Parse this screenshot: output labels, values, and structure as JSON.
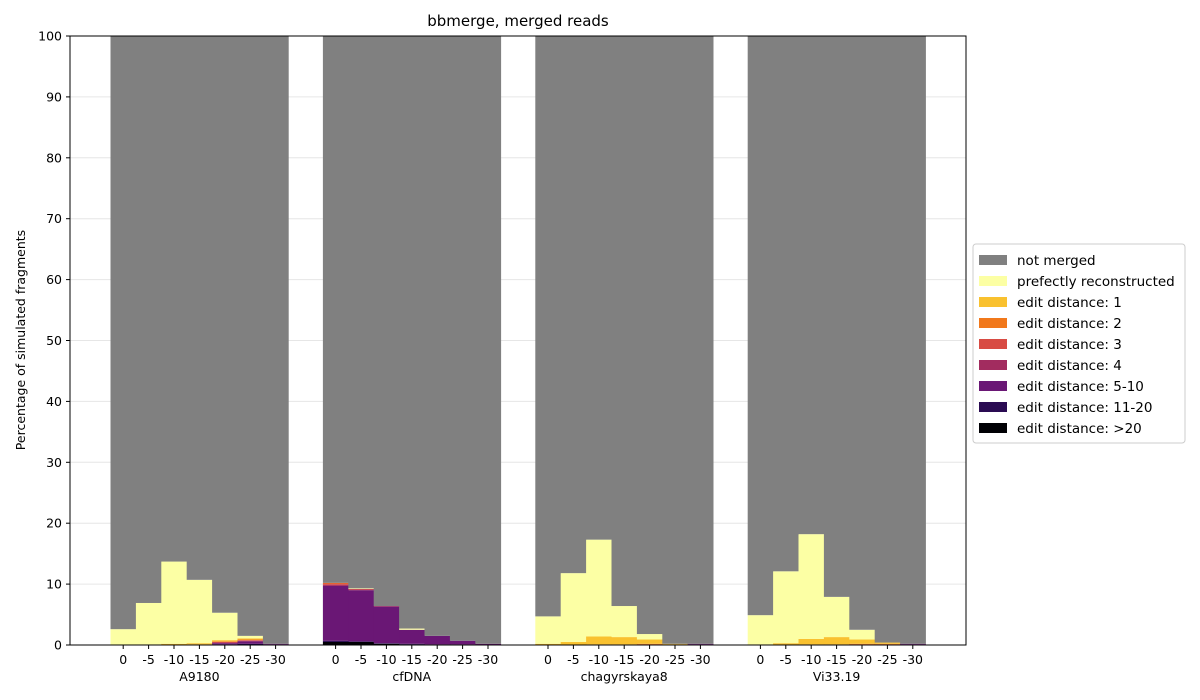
{
  "chart_data": {
    "type": "bar",
    "stacked": true,
    "title": "bbmerge, merged reads",
    "ylabel": "Percentage of simulated fragments",
    "xlabel": "",
    "ylim": [
      0,
      100
    ],
    "yticks": [
      0,
      10,
      20,
      30,
      40,
      50,
      60,
      70,
      80,
      90,
      100
    ],
    "grid": "horizontal",
    "legend_position": "right",
    "offsets": [
      "0",
      "-5",
      "-10",
      "-15",
      "-20",
      "-25",
      "-30"
    ],
    "groups": [
      {
        "name": "A9180",
        "layers": {
          "edit distance: >20": [
            0,
            0,
            0,
            0,
            0,
            0,
            0
          ],
          "edit distance: 11-20": [
            0,
            0,
            0,
            0,
            0.1,
            0.2,
            0.1
          ],
          "edit distance: 5-10": [
            0,
            0,
            0,
            0,
            0.2,
            0.4,
            0.1
          ],
          "edit distance: 4": [
            0,
            0,
            0,
            0,
            0.1,
            0.1,
            0
          ],
          "edit distance: 3": [
            0,
            0,
            0,
            0,
            0.1,
            0.1,
            0
          ],
          "edit distance: 2": [
            0,
            0,
            0,
            0.1,
            0.1,
            0.1,
            0
          ],
          "edit distance: 1": [
            0,
            0.1,
            0.2,
            0.2,
            0.2,
            0.2,
            0
          ],
          "prefectly reconstructed": [
            2.6,
            6.8,
            13.5,
            10.4,
            4.5,
            0.4,
            0
          ],
          "not merged": [
            97.4,
            93.1,
            86.3,
            89.3,
            94.7,
            98.5,
            99.8
          ]
        }
      },
      {
        "name": "cfDNA",
        "layers": {
          "edit distance: >20": [
            0.5,
            0.5,
            0.2,
            0.1,
            0,
            0,
            0
          ],
          "edit distance: 11-20": [
            0.2,
            0.1,
            0.1,
            0.1,
            0.1,
            0.1,
            0
          ],
          "edit distance: 5-10": [
            9.0,
            8.4,
            6.0,
            2.3,
            1.4,
            0.6,
            0.2
          ],
          "edit distance: 4": [
            0.2,
            0.1,
            0.1,
            0,
            0,
            0,
            0
          ],
          "edit distance: 3": [
            0.2,
            0.1,
            0,
            0,
            0,
            0,
            0
          ],
          "edit distance: 2": [
            0.1,
            0,
            0,
            0,
            0,
            0,
            0
          ],
          "edit distance: 1": [
            0,
            0,
            0,
            0,
            0,
            0,
            0
          ],
          "prefectly reconstructed": [
            0,
            0.1,
            0,
            0.2,
            0,
            0,
            0
          ],
          "not merged": [
            89.8,
            90.7,
            93.6,
            97.3,
            98.5,
            99.3,
            99.8
          ]
        }
      },
      {
        "name": "chagyrskaya8",
        "layers": {
          "edit distance: >20": [
            0,
            0,
            0,
            0,
            0,
            0,
            0
          ],
          "edit distance: 11-20": [
            0,
            0,
            0,
            0,
            0,
            0,
            0.1
          ],
          "edit distance: 5-10": [
            0,
            0,
            0,
            0,
            0,
            0.1,
            0.1
          ],
          "edit distance: 4": [
            0,
            0,
            0,
            0,
            0,
            0,
            0
          ],
          "edit distance: 3": [
            0,
            0,
            0,
            0,
            0.1,
            0,
            0
          ],
          "edit distance: 2": [
            0,
            0,
            0.1,
            0.1,
            0.1,
            0,
            0
          ],
          "edit distance: 1": [
            0.2,
            0.5,
            1.3,
            1.2,
            0.7,
            0.1,
            0
          ],
          "prefectly reconstructed": [
            4.5,
            11.3,
            15.9,
            5.1,
            0.9,
            0,
            0
          ],
          "not merged": [
            95.3,
            88.2,
            82.7,
            93.6,
            98.2,
            99.8,
            99.8
          ]
        }
      },
      {
        "name": "Vi33.19",
        "layers": {
          "edit distance: >20": [
            0,
            0,
            0,
            0,
            0,
            0,
            0
          ],
          "edit distance: 11-20": [
            0,
            0,
            0,
            0,
            0,
            0,
            0.1
          ],
          "edit distance: 5-10": [
            0,
            0,
            0,
            0,
            0,
            0.1,
            0.1
          ],
          "edit distance: 4": [
            0,
            0,
            0,
            0,
            0,
            0,
            0
          ],
          "edit distance: 3": [
            0,
            0,
            0,
            0,
            0.1,
            0,
            0
          ],
          "edit distance: 2": [
            0,
            0,
            0.1,
            0.1,
            0.1,
            0.1,
            0
          ],
          "edit distance: 1": [
            0.1,
            0.3,
            0.9,
            1.2,
            0.7,
            0.2,
            0
          ],
          "prefectly reconstructed": [
            4.8,
            11.8,
            17.2,
            6.6,
            1.6,
            0,
            0
          ],
          "not merged": [
            95.1,
            87.9,
            81.8,
            92.1,
            97.5,
            99.6,
            99.8
          ]
        }
      }
    ],
    "series": [
      {
        "name": "not merged",
        "color": "#808080"
      },
      {
        "name": "prefectly reconstructed",
        "color": "#fcffa4"
      },
      {
        "name": "edit distance: 1",
        "color": "#f9c12f"
      },
      {
        "name": "edit distance: 2",
        "color": "#f1781b"
      },
      {
        "name": "edit distance: 3",
        "color": "#d84b43"
      },
      {
        "name": "edit distance: 4",
        "color": "#a22c5f"
      },
      {
        "name": "edit distance: 5-10",
        "color": "#6a1775"
      },
      {
        "name": "edit distance: 11-20",
        "color": "#2a0b52"
      },
      {
        "name": "edit distance: >20",
        "color": "#000004"
      }
    ],
    "stack_order": [
      "edit distance: >20",
      "edit distance: 11-20",
      "edit distance: 5-10",
      "edit distance: 4",
      "edit distance: 3",
      "edit distance: 2",
      "edit distance: 1",
      "prefectly reconstructed",
      "not merged"
    ]
  }
}
